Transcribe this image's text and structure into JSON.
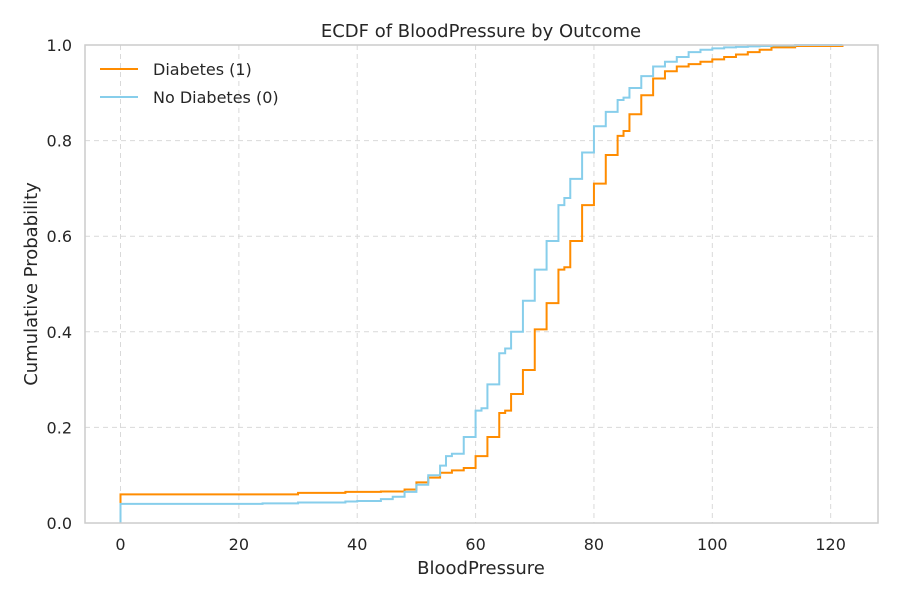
{
  "chart_data": {
    "type": "line",
    "step": "post",
    "title": "ECDF of BloodPressure by Outcome",
    "xlabel": "BloodPressure",
    "ylabel": "Cumulative Probability",
    "xlim": [
      -6,
      128
    ],
    "ylim": [
      0,
      1
    ],
    "xticks": [
      0,
      20,
      40,
      60,
      80,
      100,
      120
    ],
    "yticks": [
      0.0,
      0.2,
      0.4,
      0.6,
      0.8,
      1.0
    ],
    "xtick_labels": [
      "0",
      "20",
      "40",
      "60",
      "80",
      "100",
      "120"
    ],
    "ytick_labels": [
      "0.0",
      "0.2",
      "0.4",
      "0.6",
      "0.8",
      "1.0"
    ],
    "grid": true,
    "legend": "top-left",
    "series": [
      {
        "name": "Diabetes (1)",
        "color": "#ff8c00",
        "x": [
          0,
          30,
          38,
          44,
          48,
          50,
          52,
          54,
          56,
          58,
          60,
          62,
          64,
          65,
          66,
          68,
          70,
          72,
          74,
          75,
          76,
          78,
          80,
          82,
          84,
          85,
          86,
          88,
          90,
          92,
          94,
          96,
          98,
          100,
          102,
          104,
          106,
          108,
          110,
          114,
          122
        ],
        "y": [
          0.06,
          0.063,
          0.065,
          0.066,
          0.07,
          0.085,
          0.095,
          0.105,
          0.11,
          0.115,
          0.14,
          0.18,
          0.23,
          0.235,
          0.27,
          0.32,
          0.405,
          0.46,
          0.53,
          0.535,
          0.59,
          0.665,
          0.71,
          0.77,
          0.81,
          0.82,
          0.855,
          0.895,
          0.93,
          0.945,
          0.955,
          0.96,
          0.965,
          0.97,
          0.975,
          0.98,
          0.985,
          0.99,
          0.995,
          0.998,
          1.0
        ]
      },
      {
        "name": "No Diabetes (0)",
        "color": "#87ceeb",
        "x": [
          0,
          24,
          30,
          38,
          40,
          44,
          46,
          48,
          50,
          52,
          54,
          55,
          56,
          58,
          60,
          61,
          62,
          64,
          65,
          66,
          68,
          70,
          72,
          74,
          75,
          76,
          78,
          80,
          82,
          84,
          85,
          86,
          88,
          90,
          92,
          94,
          96,
          98,
          100,
          102,
          104,
          106,
          108,
          110,
          114,
          122
        ],
        "y": [
          0.04,
          0.041,
          0.043,
          0.045,
          0.046,
          0.05,
          0.055,
          0.065,
          0.08,
          0.1,
          0.12,
          0.14,
          0.145,
          0.18,
          0.235,
          0.24,
          0.29,
          0.355,
          0.365,
          0.4,
          0.465,
          0.53,
          0.59,
          0.665,
          0.68,
          0.72,
          0.775,
          0.83,
          0.86,
          0.885,
          0.89,
          0.91,
          0.935,
          0.955,
          0.965,
          0.975,
          0.985,
          0.99,
          0.993,
          0.995,
          0.996,
          0.997,
          0.998,
          0.999,
          1.0,
          1.0
        ]
      }
    ]
  }
}
